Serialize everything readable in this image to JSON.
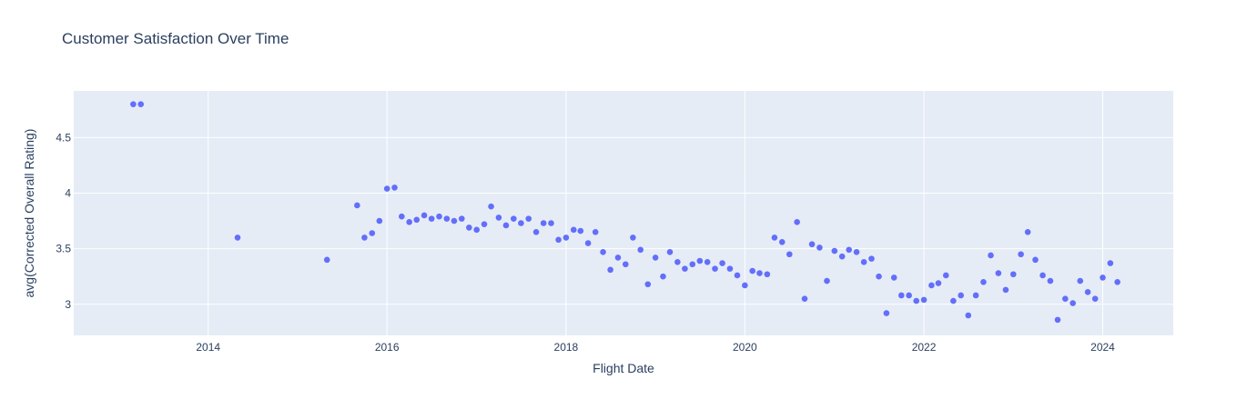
{
  "chart_data": {
    "type": "scatter",
    "title": "Customer Satisfaction Over Time",
    "xlabel": "Flight Date",
    "ylabel": "avg(Corrected Overall Rating)",
    "x_ticks": [
      "2014",
      "2016",
      "2018",
      "2020",
      "2022",
      "2024"
    ],
    "y_ticks": [
      "3",
      "3.5",
      "4",
      "4.5"
    ],
    "xlim": [
      "2012-07-01",
      "2024-10-15"
    ],
    "ylim": [
      2.72,
      4.92
    ],
    "grid": true,
    "colors": {
      "marker": "#636efa",
      "plot_bg": "#e5ecf6",
      "grid": "#ffffff"
    },
    "series": [
      {
        "points": [
          [
            "2013-03-01",
            4.8
          ],
          [
            "2013-04-01",
            4.8
          ],
          [
            "2014-05-01",
            3.6
          ],
          [
            "2015-05-01",
            3.4
          ],
          [
            "2015-09-01",
            3.89
          ],
          [
            "2015-10-01",
            3.6
          ],
          [
            "2015-11-01",
            3.64
          ],
          [
            "2015-12-01",
            3.75
          ],
          [
            "2016-01-01",
            4.04
          ],
          [
            "2016-02-01",
            4.05
          ],
          [
            "2016-03-01",
            3.79
          ],
          [
            "2016-04-01",
            3.74
          ],
          [
            "2016-05-01",
            3.76
          ],
          [
            "2016-06-01",
            3.8
          ],
          [
            "2016-07-01",
            3.77
          ],
          [
            "2016-08-01",
            3.79
          ],
          [
            "2016-09-01",
            3.77
          ],
          [
            "2016-10-01",
            3.75
          ],
          [
            "2016-11-01",
            3.77
          ],
          [
            "2016-12-01",
            3.69
          ],
          [
            "2017-01-01",
            3.67
          ],
          [
            "2017-02-01",
            3.72
          ],
          [
            "2017-03-01",
            3.88
          ],
          [
            "2017-04-01",
            3.78
          ],
          [
            "2017-05-01",
            3.71
          ],
          [
            "2017-06-01",
            3.77
          ],
          [
            "2017-07-01",
            3.73
          ],
          [
            "2017-08-01",
            3.77
          ],
          [
            "2017-09-01",
            3.65
          ],
          [
            "2017-10-01",
            3.73
          ],
          [
            "2017-11-01",
            3.73
          ],
          [
            "2017-12-01",
            3.58
          ],
          [
            "2018-01-01",
            3.6
          ],
          [
            "2018-02-01",
            3.67
          ],
          [
            "2018-03-01",
            3.66
          ],
          [
            "2018-04-01",
            3.55
          ],
          [
            "2018-05-01",
            3.65
          ],
          [
            "2018-06-01",
            3.47
          ],
          [
            "2018-07-01",
            3.31
          ],
          [
            "2018-08-01",
            3.42
          ],
          [
            "2018-09-01",
            3.36
          ],
          [
            "2018-10-01",
            3.6
          ],
          [
            "2018-11-01",
            3.49
          ],
          [
            "2018-12-01",
            3.18
          ],
          [
            "2019-01-01",
            3.42
          ],
          [
            "2019-02-01",
            3.25
          ],
          [
            "2019-03-01",
            3.47
          ],
          [
            "2019-04-01",
            3.38
          ],
          [
            "2019-05-01",
            3.32
          ],
          [
            "2019-06-01",
            3.36
          ],
          [
            "2019-07-01",
            3.39
          ],
          [
            "2019-08-01",
            3.38
          ],
          [
            "2019-09-01",
            3.32
          ],
          [
            "2019-10-01",
            3.37
          ],
          [
            "2019-11-01",
            3.32
          ],
          [
            "2019-12-01",
            3.26
          ],
          [
            "2020-01-01",
            3.17
          ],
          [
            "2020-02-01",
            3.3
          ],
          [
            "2020-03-01",
            3.28
          ],
          [
            "2020-04-01",
            3.27
          ],
          [
            "2020-05-01",
            3.6
          ],
          [
            "2020-06-01",
            3.56
          ],
          [
            "2020-07-01",
            3.45
          ],
          [
            "2020-08-01",
            3.74
          ],
          [
            "2020-09-01",
            3.05
          ],
          [
            "2020-10-01",
            3.54
          ],
          [
            "2020-11-01",
            3.51
          ],
          [
            "2020-12-01",
            3.21
          ],
          [
            "2021-01-01",
            3.48
          ],
          [
            "2021-02-01",
            3.43
          ],
          [
            "2021-03-01",
            3.49
          ],
          [
            "2021-04-01",
            3.47
          ],
          [
            "2021-05-01",
            3.38
          ],
          [
            "2021-06-01",
            3.41
          ],
          [
            "2021-07-01",
            3.25
          ],
          [
            "2021-08-01",
            2.92
          ],
          [
            "2021-09-01",
            3.24
          ],
          [
            "2021-10-01",
            3.08
          ],
          [
            "2021-11-01",
            3.08
          ],
          [
            "2021-12-01",
            3.03
          ],
          [
            "2022-01-01",
            3.04
          ],
          [
            "2022-02-01",
            3.17
          ],
          [
            "2022-03-01",
            3.19
          ],
          [
            "2022-04-01",
            3.26
          ],
          [
            "2022-05-01",
            3.03
          ],
          [
            "2022-06-01",
            3.08
          ],
          [
            "2022-07-01",
            2.9
          ],
          [
            "2022-08-01",
            3.08
          ],
          [
            "2022-09-01",
            3.2
          ],
          [
            "2022-10-01",
            3.44
          ],
          [
            "2022-11-01",
            3.28
          ],
          [
            "2022-12-01",
            3.13
          ],
          [
            "2023-01-01",
            3.27
          ],
          [
            "2023-02-01",
            3.45
          ],
          [
            "2023-03-01",
            3.65
          ],
          [
            "2023-04-01",
            3.4
          ],
          [
            "2023-05-01",
            3.26
          ],
          [
            "2023-06-01",
            3.21
          ],
          [
            "2023-07-01",
            2.86
          ],
          [
            "2023-08-01",
            3.05
          ],
          [
            "2023-09-01",
            3.01
          ],
          [
            "2023-10-01",
            3.21
          ],
          [
            "2023-11-01",
            3.11
          ],
          [
            "2023-12-01",
            3.05
          ],
          [
            "2024-01-01",
            3.24
          ],
          [
            "2024-02-01",
            3.37
          ],
          [
            "2024-03-01",
            3.2
          ]
        ]
      }
    ]
  }
}
